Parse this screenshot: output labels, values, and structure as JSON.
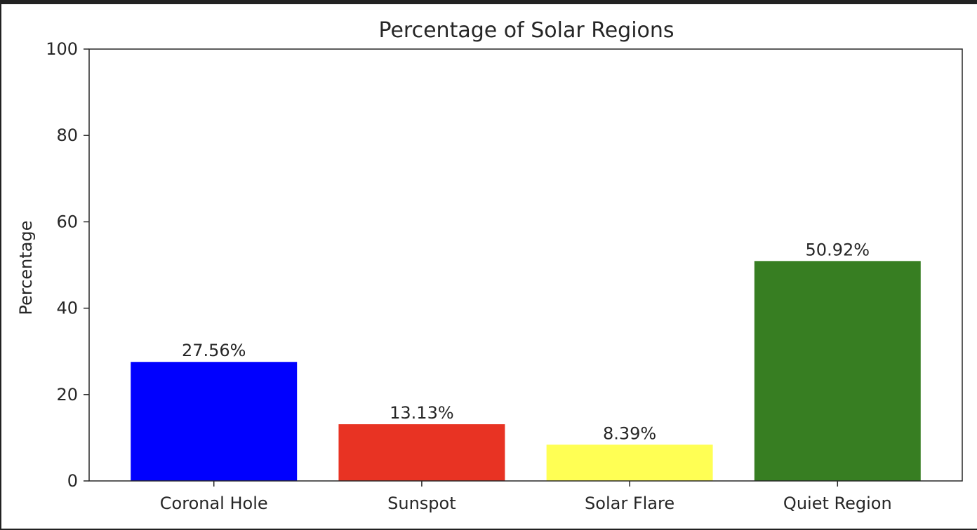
{
  "chart_data": {
    "type": "bar",
    "title": "Percentage of Solar Regions",
    "xlabel": "",
    "ylabel": "Percentage",
    "ylim": [
      0,
      100
    ],
    "yticks": [
      0,
      20,
      40,
      60,
      80,
      100
    ],
    "grid": false,
    "categories": [
      "Coronal Hole",
      "Sunspot",
      "Solar Flare",
      "Quiet Region"
    ],
    "values": [
      27.56,
      13.13,
      8.39,
      50.92
    ],
    "data_labels": [
      "27.56%",
      "13.13%",
      "8.39%",
      "50.92%"
    ],
    "colors": [
      "#0000ff",
      "#e83323",
      "#ffff54",
      "#377e22"
    ]
  }
}
